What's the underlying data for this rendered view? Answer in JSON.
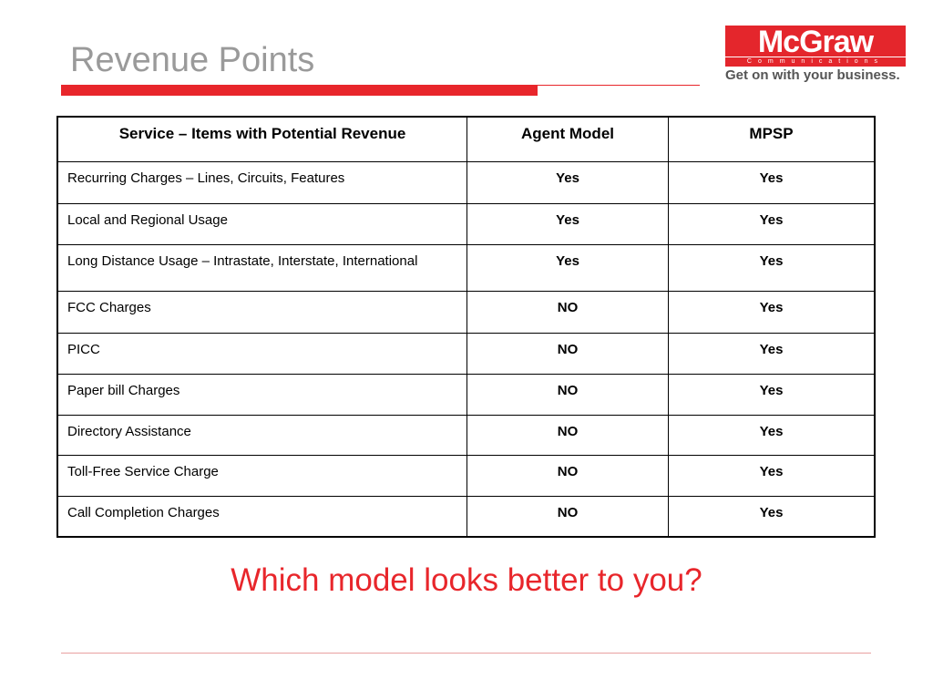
{
  "slide": {
    "title": "Revenue Points",
    "question": "Which model looks better to you?"
  },
  "logo": {
    "name": "McGraw",
    "sub": "Communications",
    "tagline": "Get on with your business."
  },
  "table": {
    "headers": [
      "Service – Items with Potential Revenue",
      "Agent Model",
      "MPSP"
    ],
    "rows": [
      [
        "Recurring Charges – Lines, Circuits, Features",
        "Yes",
        "Yes"
      ],
      [
        "Local and Regional Usage",
        "Yes",
        "Yes"
      ],
      [
        "Long Distance Usage – Intrastate, Interstate, International",
        "Yes",
        "Yes"
      ],
      [
        "FCC Charges",
        "NO",
        "Yes"
      ],
      [
        "PICC",
        "NO",
        "Yes"
      ],
      [
        "Paper bill Charges",
        "NO",
        "Yes"
      ],
      [
        "Directory Assistance",
        "NO",
        "Yes"
      ],
      [
        "Toll-Free Service Charge",
        "NO",
        "Yes"
      ],
      [
        "Call Completion Charges",
        "NO",
        "Yes"
      ]
    ]
  },
  "colors": {
    "accent": "#e8262b",
    "title": "#9a9a9a"
  }
}
